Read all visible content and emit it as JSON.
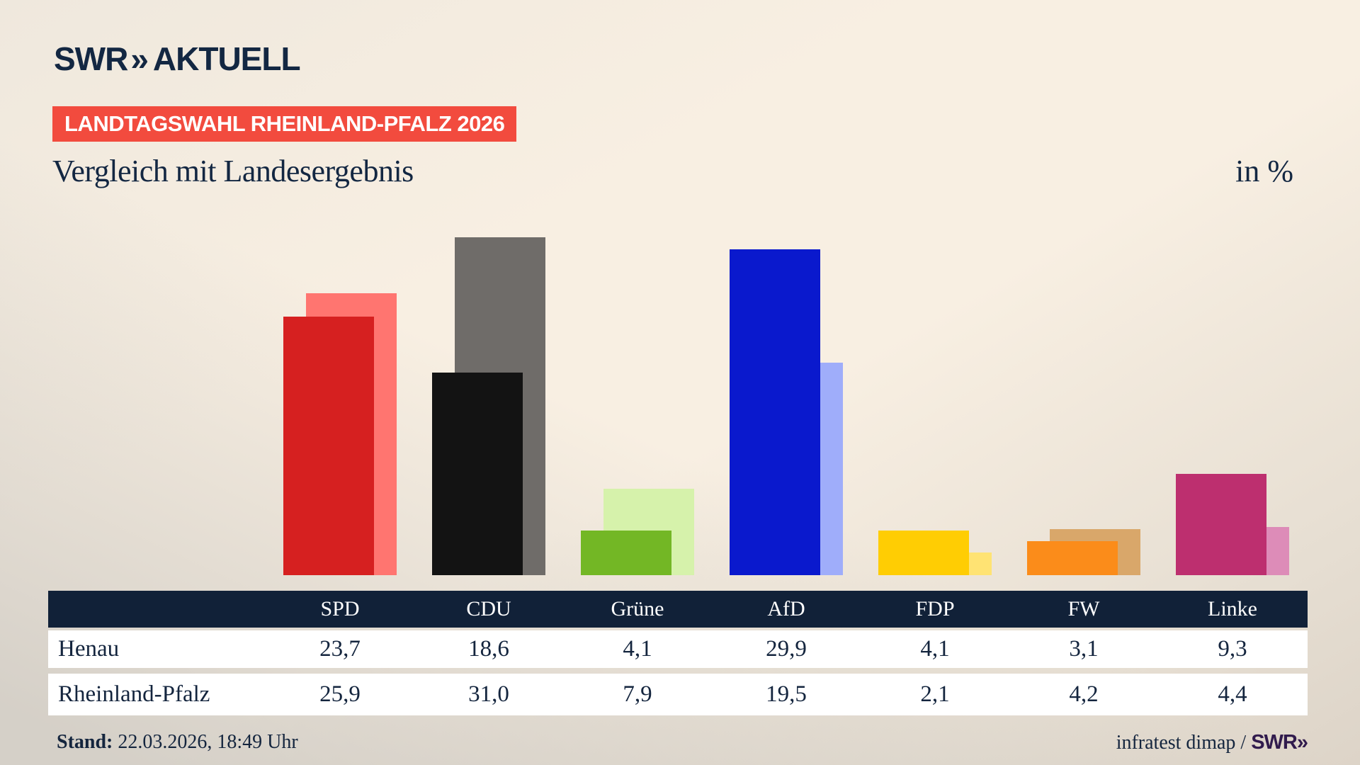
{
  "header": {
    "logo_swr": "SWR",
    "logo_chevrons": "»",
    "logo_aktuell": "AKTUELL",
    "banner": "LANDTAGSWAHL RHEINLAND-PFALZ 2026",
    "title": "Vergleich mit Landesergebnis",
    "unit_label": "in %"
  },
  "chart_data": {
    "type": "bar",
    "title": "Vergleich mit Landesergebnis",
    "ylabel": "in %",
    "ylim": [
      0,
      31
    ],
    "grid": false,
    "legend_position": "none",
    "categories": [
      "SPD",
      "CDU",
      "Grüne",
      "AfD",
      "FDP",
      "FW",
      "Linke"
    ],
    "series": [
      {
        "name": "Henau",
        "role": "front",
        "values": [
          23.7,
          18.6,
          4.1,
          29.9,
          4.1,
          3.1,
          9.3
        ],
        "colors": [
          "#d62020",
          "#131313",
          "#73b725",
          "#0a19cd",
          "#ffcd03",
          "#fb8c1a",
          "#bd2f6f"
        ]
      },
      {
        "name": "Rheinland-Pfalz",
        "role": "back",
        "values": [
          25.9,
          31.0,
          7.9,
          19.5,
          2.1,
          4.2,
          4.4
        ],
        "colors": [
          "#ff7570",
          "#6f6c69",
          "#d6f2ab",
          "#9fadfa",
          "#ffe373",
          "#d9a76a",
          "#dd8cb8"
        ]
      }
    ]
  },
  "table": {
    "columns": [
      "SPD",
      "CDU",
      "Grüne",
      "AfD",
      "FDP",
      "FW",
      "Linke"
    ],
    "rows": [
      {
        "label": "Henau",
        "values": [
          "23,7",
          "18,6",
          "4,1",
          "29,9",
          "4,1",
          "3,1",
          "9,3"
        ]
      },
      {
        "label": "Rheinland-Pfalz",
        "values": [
          "25,9",
          "31,0",
          "7,9",
          "19,5",
          "2,1",
          "4,2",
          "4,4"
        ]
      }
    ],
    "header_bg": "#112138",
    "row_bg": "#ffffff",
    "text_color": "#14253e"
  },
  "footer": {
    "stand_label": "Stand:",
    "stand_value": " 22.03.2026, 18:49 Uhr",
    "source": "infratest dimap / ",
    "source_logo": "SWR»"
  },
  "colors": {
    "accent_red": "#f24b3e",
    "brand_navy": "#132742",
    "background_beige": "#f8efe2"
  }
}
